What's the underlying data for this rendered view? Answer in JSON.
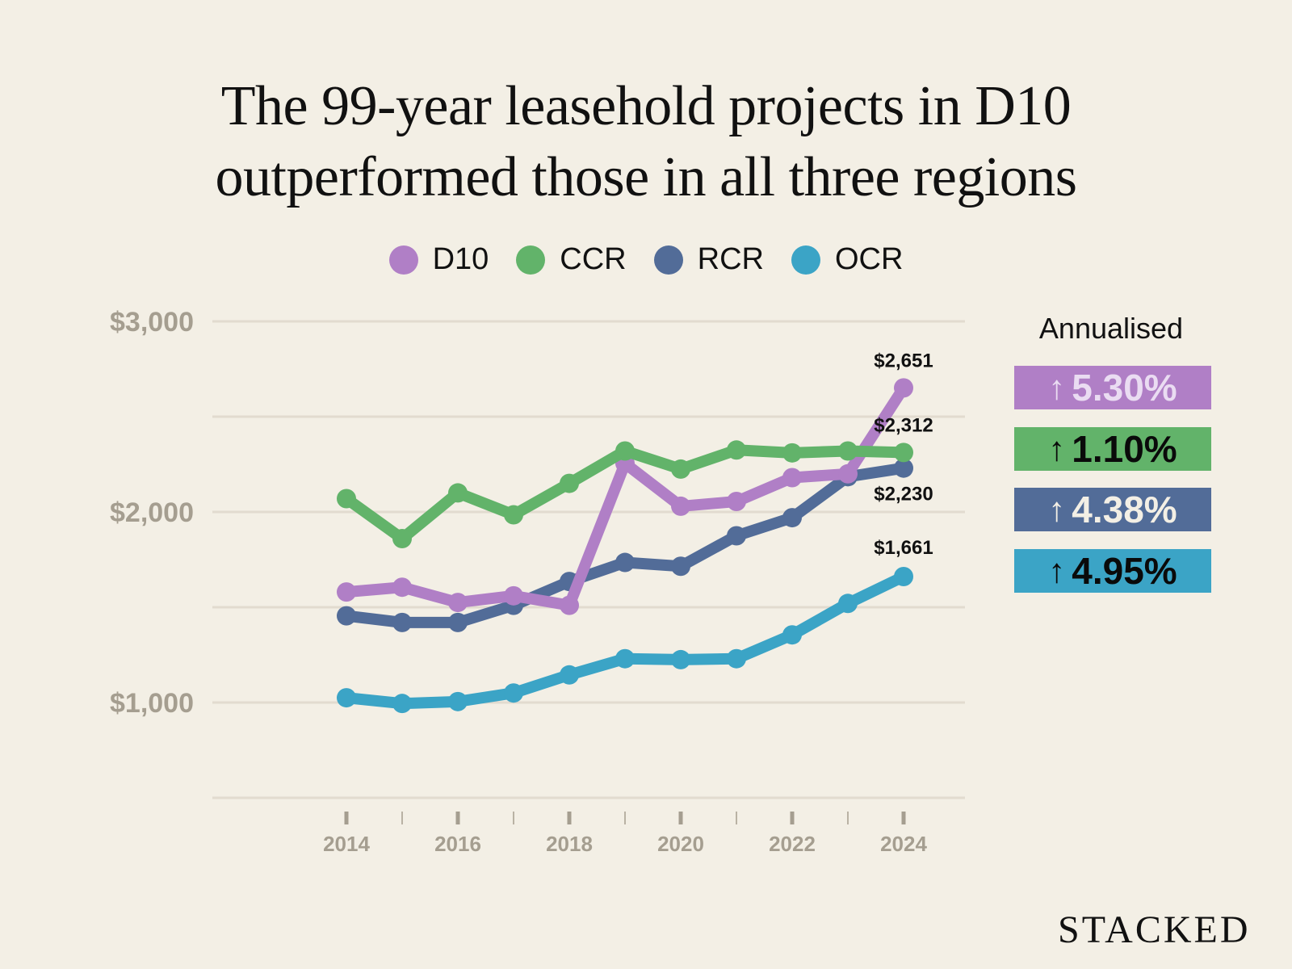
{
  "title_lines": [
    "The 99-year leasehold projects in D10",
    "outperformed those in all three regions"
  ],
  "brand": "STACKED",
  "annualised": {
    "title": "Annualised",
    "badges": [
      {
        "series": "D10",
        "arrow": "↑",
        "value": "5.30%",
        "bg": "#b07fc6",
        "fg": "#eadcf2"
      },
      {
        "series": "CCR",
        "arrow": "↑",
        "value": "1.10%",
        "bg": "#62b36a",
        "fg": "#0a0a0a"
      },
      {
        "series": "RCR",
        "arrow": "↑",
        "value": "4.38%",
        "bg": "#526c98",
        "fg": "#f3efe5"
      },
      {
        "series": "OCR",
        "arrow": "↑",
        "value": "4.95%",
        "bg": "#3ba4c6",
        "fg": "#0a0a0a"
      }
    ]
  },
  "chart_data": {
    "type": "line",
    "title": "The 99-year leasehold projects in D10 outperformed those in all three regions",
    "xlabel": "",
    "ylabel": "",
    "x": [
      2014,
      2015,
      2016,
      2017,
      2018,
      2019,
      2020,
      2021,
      2022,
      2023,
      2024
    ],
    "xticks_major": [
      2014,
      2016,
      2018,
      2020,
      2022,
      2024
    ],
    "xtick_labels": [
      "2014",
      "2016",
      "2018",
      "2020",
      "2022",
      "2024"
    ],
    "xticks_minor": [
      2015,
      2017,
      2019,
      2021,
      2023
    ],
    "ylim": [
      500,
      3000
    ],
    "yticks": [
      1000,
      2000,
      3000
    ],
    "ytick_labels": [
      "$1,000",
      "$2,000",
      "$3,000"
    ],
    "gridlines": [
      500,
      1000,
      1500,
      2000,
      2500,
      3000
    ],
    "grid": true,
    "legend_position": "top-center",
    "series": [
      {
        "name": "D10",
        "color": "#b07fc6",
        "values": [
          1580,
          1605,
          1525,
          1560,
          1510,
          2255,
          2030,
          2055,
          2180,
          2200,
          2651
        ],
        "end_label": "$2,651"
      },
      {
        "name": "CCR",
        "color": "#62b36a",
        "values": [
          2070,
          1860,
          2100,
          1985,
          2150,
          2320,
          2225,
          2325,
          2310,
          2320,
          2312
        ],
        "end_label": "$2,312"
      },
      {
        "name": "RCR",
        "color": "#526c98",
        "values": [
          1455,
          1420,
          1420,
          1510,
          1635,
          1735,
          1715,
          1875,
          1970,
          2185,
          2230
        ],
        "end_label": "$2,230"
      },
      {
        "name": "OCR",
        "color": "#3ba4c6",
        "values": [
          1025,
          995,
          1005,
          1050,
          1145,
          1230,
          1225,
          1230,
          1355,
          1520,
          1661
        ],
        "end_label": "$1,661"
      }
    ]
  }
}
